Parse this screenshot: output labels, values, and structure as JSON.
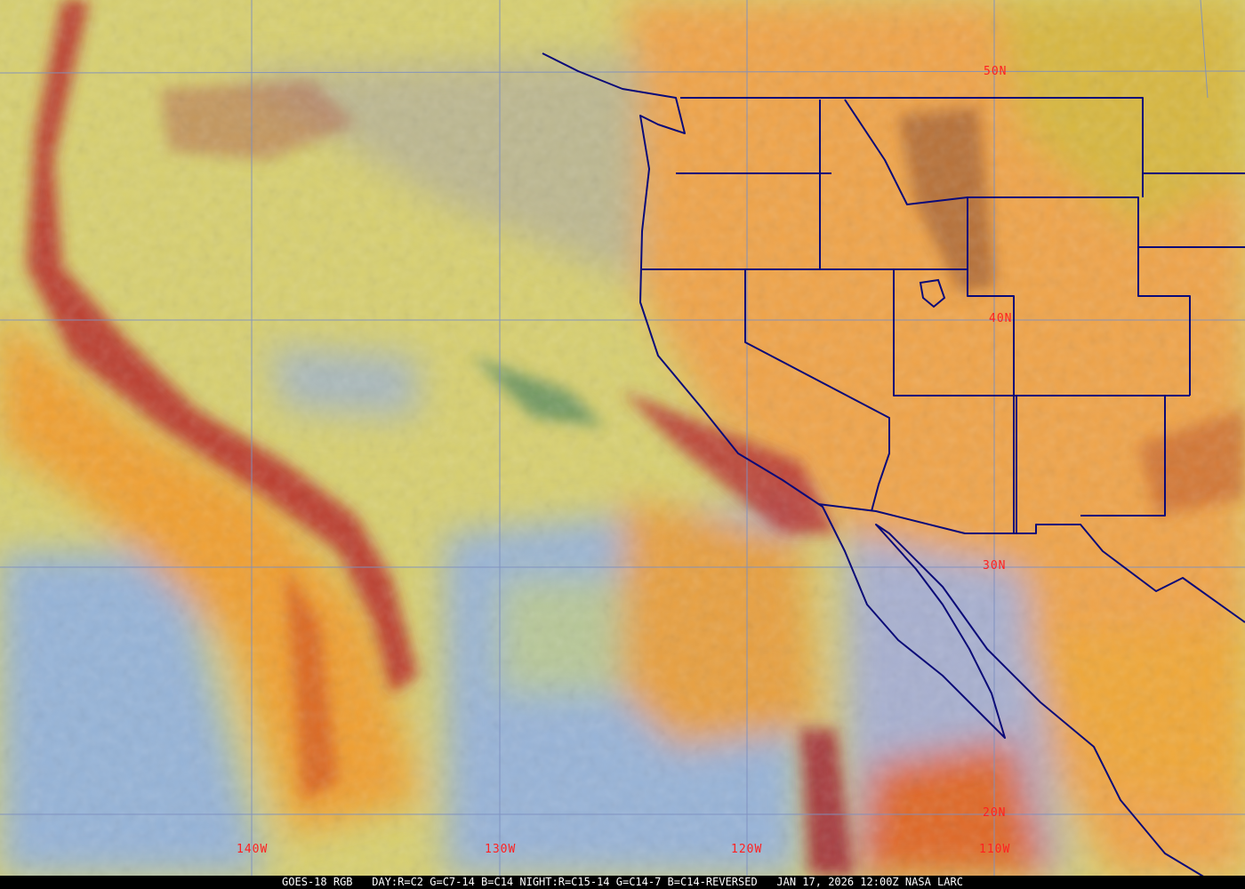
{
  "map": {
    "latitude_labels": [
      "50N",
      "40N",
      "30N",
      "20N"
    ],
    "longitude_labels": [
      "140W",
      "130W",
      "120W",
      "110W"
    ],
    "caption": {
      "satellite": "GOES-18 RGB",
      "recipe": "DAY:R=C2 G=C7-14 B=C14 NIGHT:R=C15-14 G=C14-7 B=C14-REVERSED",
      "datetime": "JAN 17, 2026 12:00Z",
      "source": "NASA LARC"
    },
    "colors": {
      "border": "#0a0a78",
      "grid": "#7d8fc0",
      "label": "#ff2020",
      "land": "#f0a048",
      "cloud_high": "#e8e070",
      "cloud_band": "#c0302a",
      "ocean_clear": "#90b0d8"
    }
  }
}
